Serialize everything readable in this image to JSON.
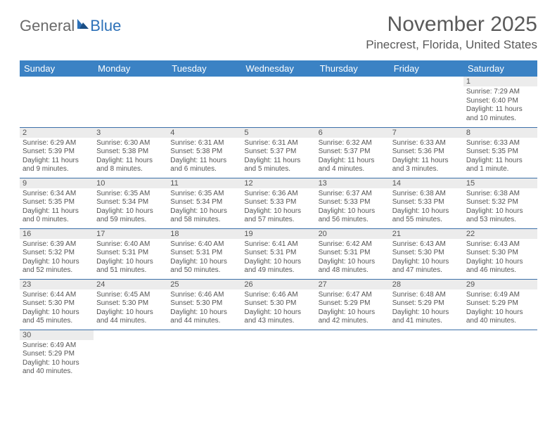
{
  "logo": {
    "word1": "General",
    "word2": "Blue"
  },
  "title": "November 2025",
  "location": "Pinecrest, Florida, United States",
  "header_bg": "#3b82c4",
  "days_of_week": [
    "Sunday",
    "Monday",
    "Tuesday",
    "Wednesday",
    "Thursday",
    "Friday",
    "Saturday"
  ],
  "weeks": [
    [
      null,
      null,
      null,
      null,
      null,
      null,
      {
        "n": "1",
        "sr": "7:29 AM",
        "ss": "6:40 PM",
        "dl": "11 hours and 10 minutes."
      }
    ],
    [
      {
        "n": "2",
        "sr": "6:29 AM",
        "ss": "5:39 PM",
        "dl": "11 hours and 9 minutes."
      },
      {
        "n": "3",
        "sr": "6:30 AM",
        "ss": "5:38 PM",
        "dl": "11 hours and 8 minutes."
      },
      {
        "n": "4",
        "sr": "6:31 AM",
        "ss": "5:38 PM",
        "dl": "11 hours and 6 minutes."
      },
      {
        "n": "5",
        "sr": "6:31 AM",
        "ss": "5:37 PM",
        "dl": "11 hours and 5 minutes."
      },
      {
        "n": "6",
        "sr": "6:32 AM",
        "ss": "5:37 PM",
        "dl": "11 hours and 4 minutes."
      },
      {
        "n": "7",
        "sr": "6:33 AM",
        "ss": "5:36 PM",
        "dl": "11 hours and 3 minutes."
      },
      {
        "n": "8",
        "sr": "6:33 AM",
        "ss": "5:35 PM",
        "dl": "11 hours and 1 minute."
      }
    ],
    [
      {
        "n": "9",
        "sr": "6:34 AM",
        "ss": "5:35 PM",
        "dl": "11 hours and 0 minutes."
      },
      {
        "n": "10",
        "sr": "6:35 AM",
        "ss": "5:34 PM",
        "dl": "10 hours and 59 minutes."
      },
      {
        "n": "11",
        "sr": "6:35 AM",
        "ss": "5:34 PM",
        "dl": "10 hours and 58 minutes."
      },
      {
        "n": "12",
        "sr": "6:36 AM",
        "ss": "5:33 PM",
        "dl": "10 hours and 57 minutes."
      },
      {
        "n": "13",
        "sr": "6:37 AM",
        "ss": "5:33 PM",
        "dl": "10 hours and 56 minutes."
      },
      {
        "n": "14",
        "sr": "6:38 AM",
        "ss": "5:33 PM",
        "dl": "10 hours and 55 minutes."
      },
      {
        "n": "15",
        "sr": "6:38 AM",
        "ss": "5:32 PM",
        "dl": "10 hours and 53 minutes."
      }
    ],
    [
      {
        "n": "16",
        "sr": "6:39 AM",
        "ss": "5:32 PM",
        "dl": "10 hours and 52 minutes."
      },
      {
        "n": "17",
        "sr": "6:40 AM",
        "ss": "5:31 PM",
        "dl": "10 hours and 51 minutes."
      },
      {
        "n": "18",
        "sr": "6:40 AM",
        "ss": "5:31 PM",
        "dl": "10 hours and 50 minutes."
      },
      {
        "n": "19",
        "sr": "6:41 AM",
        "ss": "5:31 PM",
        "dl": "10 hours and 49 minutes."
      },
      {
        "n": "20",
        "sr": "6:42 AM",
        "ss": "5:31 PM",
        "dl": "10 hours and 48 minutes."
      },
      {
        "n": "21",
        "sr": "6:43 AM",
        "ss": "5:30 PM",
        "dl": "10 hours and 47 minutes."
      },
      {
        "n": "22",
        "sr": "6:43 AM",
        "ss": "5:30 PM",
        "dl": "10 hours and 46 minutes."
      }
    ],
    [
      {
        "n": "23",
        "sr": "6:44 AM",
        "ss": "5:30 PM",
        "dl": "10 hours and 45 minutes."
      },
      {
        "n": "24",
        "sr": "6:45 AM",
        "ss": "5:30 PM",
        "dl": "10 hours and 44 minutes."
      },
      {
        "n": "25",
        "sr": "6:46 AM",
        "ss": "5:30 PM",
        "dl": "10 hours and 44 minutes."
      },
      {
        "n": "26",
        "sr": "6:46 AM",
        "ss": "5:30 PM",
        "dl": "10 hours and 43 minutes."
      },
      {
        "n": "27",
        "sr": "6:47 AM",
        "ss": "5:29 PM",
        "dl": "10 hours and 42 minutes."
      },
      {
        "n": "28",
        "sr": "6:48 AM",
        "ss": "5:29 PM",
        "dl": "10 hours and 41 minutes."
      },
      {
        "n": "29",
        "sr": "6:49 AM",
        "ss": "5:29 PM",
        "dl": "10 hours and 40 minutes."
      }
    ],
    [
      {
        "n": "30",
        "sr": "6:49 AM",
        "ss": "5:29 PM",
        "dl": "10 hours and 40 minutes."
      },
      null,
      null,
      null,
      null,
      null,
      null
    ]
  ],
  "labels": {
    "sunrise": "Sunrise:",
    "sunset": "Sunset:",
    "daylight": "Daylight:"
  }
}
